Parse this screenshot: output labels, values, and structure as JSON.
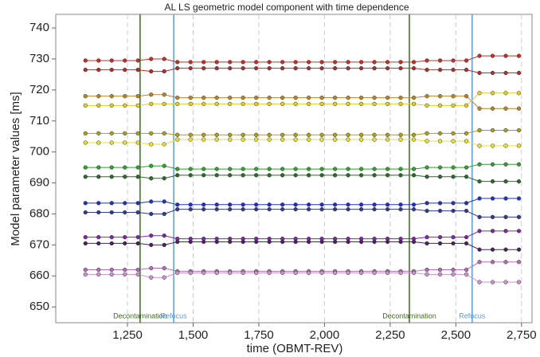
{
  "chart_data": {
    "type": "line",
    "title": "AL LS geometric model component with time dependence",
    "x_label": "time (OBMT-REV)",
    "y_label": "Model parameter values [ms]",
    "xlim": [
      977,
      2790
    ],
    "ylim": [
      644.9,
      744.4
    ],
    "xticks": [
      {
        "value": 1250,
        "label": "1,250"
      },
      {
        "value": 1500,
        "label": "1,500"
      },
      {
        "value": 1750,
        "label": "1,750"
      },
      {
        "value": 2000,
        "label": "2,000"
      },
      {
        "value": 2250,
        "label": "2,250"
      },
      {
        "value": 2500,
        "label": "2,500"
      },
      {
        "value": 2750,
        "label": "2,750"
      }
    ],
    "yticks": [
      650,
      660,
      670,
      680,
      690,
      700,
      710,
      720,
      730,
      740
    ],
    "grid": "x",
    "vlines": [
      {
        "x": 1298,
        "label": "Decontamination",
        "color": "#3d6b1f"
      },
      {
        "x": 1426,
        "label": "Refocus",
        "color": "#5b9bd5"
      },
      {
        "x": 2323,
        "label": "Decontamination",
        "color": "#3d6b1f"
      },
      {
        "x": 2562,
        "label": "Refocus",
        "color": "#5b9bd5"
      }
    ],
    "x": [
      1090,
      1140,
      1190,
      1240,
      1290,
      1340,
      1390,
      1440,
      1490,
      1540,
      1590,
      1640,
      1690,
      1740,
      1790,
      1840,
      1890,
      1940,
      1990,
      2040,
      2090,
      2140,
      2190,
      2240,
      2290,
      2340,
      2390,
      2440,
      2490,
      2540,
      2590,
      2640,
      2690,
      2740
    ],
    "series": [
      {
        "color": "#c0302a",
        "values": [
          729.5,
          729.5,
          729.5,
          729.5,
          729.5,
          730,
          730,
          729,
          729,
          729,
          729,
          729,
          729,
          729,
          729,
          729,
          729,
          729,
          729,
          729,
          729,
          729,
          729,
          729,
          729,
          729,
          729.5,
          729.5,
          729.5,
          729.5,
          731,
          731,
          731,
          731
        ]
      },
      {
        "color": "#a8302e",
        "values": [
          726.5,
          726.5,
          726.5,
          726.5,
          726.5,
          726,
          726,
          727,
          727,
          727,
          727,
          727,
          727,
          727,
          727,
          727,
          727,
          727,
          727,
          727,
          727,
          727,
          727,
          727,
          727,
          727,
          726.5,
          726.5,
          726.5,
          726.5,
          725.5,
          725.5,
          725.5,
          725.5
        ]
      },
      {
        "color": "#b8862a",
        "values": [
          718,
          718,
          718,
          718,
          718,
          718.5,
          718.5,
          717.5,
          717.5,
          717.5,
          717.5,
          717.5,
          717.5,
          717.5,
          717.5,
          717.5,
          717.5,
          717.5,
          717.5,
          717.5,
          717.5,
          717.5,
          717.5,
          717.5,
          717.5,
          717.5,
          718,
          718,
          718,
          718,
          714,
          714,
          714,
          714
        ]
      },
      {
        "color": "#e0d020",
        "values": [
          715,
          715,
          715,
          715,
          715,
          715.5,
          715.5,
          715.5,
          715.5,
          715.5,
          715.5,
          715.5,
          715.5,
          715.5,
          715.5,
          715.5,
          715.5,
          715.5,
          715.5,
          715.5,
          715.5,
          715.5,
          715.5,
          715.5,
          715.5,
          715.5,
          715,
          715,
          715,
          715,
          719,
          719,
          719,
          719
        ]
      },
      {
        "color": "#a8a020",
        "values": [
          706,
          706,
          706,
          706,
          706,
          706,
          706,
          705.5,
          705.5,
          705.5,
          705.5,
          705.5,
          705.5,
          705.5,
          705.5,
          705.5,
          705.5,
          705.5,
          705.5,
          705.5,
          705.5,
          705.5,
          705.5,
          705.5,
          705.5,
          705.5,
          706,
          706,
          706,
          706,
          707,
          707,
          707,
          707
        ]
      },
      {
        "color": "#e8e030",
        "values": [
          703,
          703,
          703,
          703,
          703,
          702.5,
          702.5,
          704,
          704,
          704,
          704,
          704,
          704,
          704,
          704,
          704,
          704,
          704,
          704,
          704,
          704,
          704,
          704,
          704,
          704,
          704,
          703.5,
          703.5,
          703.5,
          703.5,
          702,
          702,
          702,
          702
        ]
      },
      {
        "color": "#30a030",
        "values": [
          695,
          695,
          695,
          695,
          695,
          695.5,
          695.5,
          694.5,
          694.5,
          694.5,
          694.5,
          694.5,
          694.5,
          694.5,
          694.5,
          694.5,
          694.5,
          694.5,
          694.5,
          694.5,
          694.5,
          694.5,
          694.5,
          694.5,
          694.5,
          694.5,
          695,
          695,
          695,
          695,
          696,
          696,
          696,
          696
        ]
      },
      {
        "color": "#2a6a2a",
        "values": [
          692,
          692,
          692,
          692,
          692,
          691.5,
          691.5,
          692.5,
          692.5,
          692.5,
          692.5,
          692.5,
          692.5,
          692.5,
          692.5,
          692.5,
          692.5,
          692.5,
          692.5,
          692.5,
          692.5,
          692.5,
          692.5,
          692.5,
          692.5,
          692.5,
          692,
          692,
          692,
          692,
          690.5,
          690.5,
          690.5,
          690.5
        ]
      },
      {
        "color": "#2030c0",
        "values": [
          683.5,
          683.5,
          683.5,
          683.5,
          683.5,
          684,
          684,
          683,
          683,
          683,
          683,
          683,
          683,
          683,
          683,
          683,
          683,
          683,
          683,
          683,
          683,
          683,
          683,
          683,
          683,
          683,
          683.5,
          683.5,
          683.5,
          683.5,
          685,
          685,
          685,
          685
        ]
      },
      {
        "color": "#303a90",
        "values": [
          680.5,
          680.5,
          680.5,
          680.5,
          680.5,
          680,
          680,
          681.5,
          681.5,
          681.5,
          681.5,
          681.5,
          681.5,
          681.5,
          681.5,
          681.5,
          681.5,
          681.5,
          681.5,
          681.5,
          681.5,
          681.5,
          681.5,
          681.5,
          681.5,
          681.5,
          681,
          681,
          681,
          681,
          679,
          679,
          679,
          679
        ]
      },
      {
        "color": "#7a2a9a",
        "values": [
          672.5,
          672.5,
          672.5,
          672.5,
          672.5,
          673,
          673,
          672,
          672,
          672,
          672,
          672,
          672,
          672,
          672,
          672,
          672,
          672,
          672,
          672,
          672,
          672,
          672,
          672,
          672,
          672,
          672.5,
          672.5,
          672.5,
          672.5,
          674.5,
          674.5,
          674.5,
          674.5
        ]
      },
      {
        "color": "#4a2060",
        "values": [
          670.5,
          670.5,
          670.5,
          670.5,
          670.5,
          670,
          670,
          671,
          671,
          671,
          671,
          671,
          671,
          671,
          671,
          671,
          671,
          671,
          671,
          671,
          671,
          671,
          671,
          671,
          671,
          671,
          670.5,
          670.5,
          670.5,
          670.5,
          668.5,
          668.5,
          668.5,
          668.5
        ]
      },
      {
        "color": "#b070b0",
        "values": [
          662,
          662,
          662,
          662,
          662,
          662.5,
          662.5,
          661.5,
          661.5,
          661.5,
          661.5,
          661.5,
          661.5,
          661.5,
          661.5,
          661.5,
          661.5,
          661.5,
          661.5,
          661.5,
          661.5,
          661.5,
          661.5,
          661.5,
          661.5,
          661.5,
          662,
          662,
          662,
          662,
          664.5,
          664.5,
          664.5,
          664.5
        ]
      },
      {
        "color": "#d090d0",
        "values": [
          660.5,
          660.5,
          660.5,
          660.5,
          660.5,
          659.5,
          659.5,
          661,
          661,
          661,
          661,
          661,
          661,
          661,
          661,
          661,
          661,
          661,
          661,
          661,
          661,
          661,
          661,
          661,
          661,
          661,
          660.5,
          660.5,
          660.5,
          660.5,
          658,
          658,
          658,
          658
        ]
      }
    ]
  }
}
